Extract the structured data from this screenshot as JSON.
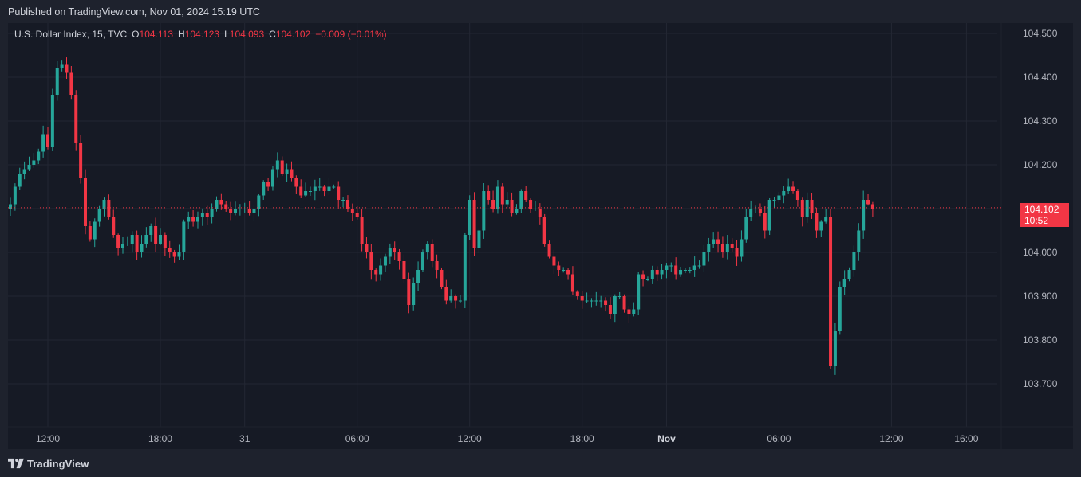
{
  "header": {
    "published": "Published on TradingView.com, Nov 01, 2024 15:19 UTC"
  },
  "legend": {
    "symbol": "U.S. Dollar Index, 15, TVC",
    "open_label": "O",
    "open": "104.113",
    "high_label": "H",
    "high": "104.123",
    "low_label": "L",
    "low": "104.093",
    "close_label": "C",
    "close": "104.102",
    "change": "−0.009 (−0.01%)"
  },
  "last_price": {
    "price": "104.102",
    "countdown": "10:52"
  },
  "footer": {
    "brand": "TradingView",
    "logo_icon": "tradingview-logo-icon"
  },
  "colors": {
    "up": "#26a69a",
    "down": "#f23645",
    "background": "#161a25",
    "grid": "#232733",
    "frame": "#1e222d"
  },
  "chart_data": {
    "type": "candlestick",
    "symbol": "U.S. Dollar Index",
    "interval": "15",
    "exchange": "TVC",
    "y_ticks": [
      "104.500",
      "104.400",
      "104.300",
      "104.200",
      "104.100",
      "104.000",
      "103.900",
      "103.800",
      "103.700"
    ],
    "ylim": [
      103.6,
      104.52
    ],
    "x_ticks": [
      {
        "label": "12:00",
        "bar": 8,
        "bold": false
      },
      {
        "label": "18:00",
        "bar": 32,
        "bold": false
      },
      {
        "label": "31",
        "bar": 50,
        "bold": false
      },
      {
        "label": "06:00",
        "bar": 74,
        "bold": false
      },
      {
        "label": "12:00",
        "bar": 98,
        "bold": false
      },
      {
        "label": "18:00",
        "bar": 122,
        "bold": false
      },
      {
        "label": "Nov",
        "bar": 140,
        "bold": true
      },
      {
        "label": "06:00",
        "bar": 164,
        "bold": false
      },
      {
        "label": "12:00",
        "bar": 188,
        "bold": false
      },
      {
        "label": "16:00",
        "bar": 204,
        "bold": false
      }
    ],
    "anchor_points": [
      [
        0,
        104.11
      ],
      [
        1,
        104.15
      ],
      [
        2,
        104.18
      ],
      [
        3,
        104.19
      ],
      [
        4,
        104.2
      ],
      [
        5,
        104.21
      ],
      [
        6,
        104.23
      ],
      [
        7,
        104.27
      ],
      [
        8,
        104.24
      ],
      [
        9,
        104.36
      ],
      [
        10,
        104.42
      ],
      [
        11,
        104.43
      ],
      [
        12,
        104.41
      ],
      [
        13,
        104.36
      ],
      [
        14,
        104.25
      ],
      [
        15,
        104.17
      ],
      [
        16,
        104.06
      ],
      [
        17,
        104.03
      ],
      [
        18,
        104.07
      ],
      [
        19,
        104.1
      ],
      [
        20,
        104.12
      ],
      [
        21,
        104.08
      ],
      [
        22,
        104.04
      ],
      [
        23,
        104.01
      ],
      [
        24,
        104.02
      ],
      [
        25,
        104.02
      ],
      [
        26,
        104.04
      ],
      [
        27,
        104.0
      ],
      [
        28,
        104.02
      ],
      [
        29,
        104.04
      ],
      [
        30,
        104.06
      ],
      [
        31,
        104.02
      ],
      [
        32,
        104.04
      ],
      [
        33,
        104.01
      ],
      [
        34,
        104.0
      ],
      [
        35,
        103.99
      ],
      [
        36,
        104.0
      ],
      [
        37,
        104.07
      ],
      [
        38,
        104.08
      ],
      [
        39,
        104.07
      ],
      [
        40,
        104.08
      ],
      [
        41,
        104.09
      ],
      [
        42,
        104.08
      ],
      [
        43,
        104.1
      ],
      [
        44,
        104.12
      ],
      [
        45,
        104.11
      ],
      [
        46,
        104.1
      ],
      [
        47,
        104.09
      ],
      [
        48,
        104.1
      ],
      [
        49,
        104.1
      ],
      [
        50,
        104.1
      ],
      [
        51,
        104.09
      ],
      [
        52,
        104.1
      ],
      [
        53,
        104.13
      ],
      [
        54,
        104.16
      ],
      [
        55,
        104.15
      ],
      [
        56,
        104.19
      ],
      [
        57,
        104.21
      ],
      [
        58,
        104.18
      ],
      [
        59,
        104.19
      ],
      [
        60,
        104.17
      ],
      [
        61,
        104.15
      ],
      [
        62,
        104.13
      ],
      [
        63,
        104.14
      ],
      [
        64,
        104.14
      ],
      [
        65,
        104.15
      ],
      [
        66,
        104.15
      ],
      [
        67,
        104.14
      ],
      [
        68,
        104.15
      ],
      [
        69,
        104.15
      ],
      [
        70,
        104.12
      ],
      [
        71,
        104.12
      ],
      [
        72,
        104.1
      ],
      [
        73,
        104.09
      ],
      [
        74,
        104.08
      ],
      [
        75,
        104.02
      ],
      [
        76,
        104.0
      ],
      [
        77,
        103.96
      ],
      [
        78,
        103.95
      ],
      [
        79,
        103.97
      ],
      [
        80,
        103.99
      ],
      [
        81,
        104.01
      ],
      [
        82,
        104.0
      ],
      [
        83,
        103.98
      ],
      [
        84,
        103.94
      ],
      [
        85,
        103.88
      ],
      [
        86,
        103.93
      ],
      [
        87,
        103.96
      ],
      [
        88,
        104.0
      ],
      [
        89,
        104.02
      ],
      [
        90,
        103.98
      ],
      [
        91,
        103.96
      ],
      [
        92,
        103.92
      ],
      [
        93,
        103.89
      ],
      [
        94,
        103.9
      ],
      [
        95,
        103.89
      ],
      [
        96,
        103.89
      ],
      [
        97,
        104.04
      ],
      [
        98,
        104.12
      ],
      [
        99,
        104.01
      ],
      [
        100,
        104.05
      ],
      [
        101,
        104.14
      ],
      [
        102,
        104.12
      ],
      [
        103,
        104.1
      ],
      [
        104,
        104.15
      ],
      [
        105,
        104.11
      ],
      [
        106,
        104.12
      ],
      [
        107,
        104.09
      ],
      [
        108,
        104.1
      ],
      [
        109,
        104.14
      ],
      [
        110,
        104.12
      ],
      [
        111,
        104.1
      ],
      [
        112,
        104.1
      ],
      [
        113,
        104.08
      ],
      [
        114,
        104.02
      ],
      [
        115,
        103.99
      ],
      [
        116,
        103.97
      ],
      [
        117,
        103.96
      ],
      [
        118,
        103.96
      ],
      [
        119,
        103.95
      ],
      [
        120,
        103.91
      ],
      [
        121,
        103.9
      ],
      [
        122,
        103.89
      ],
      [
        123,
        103.89
      ],
      [
        124,
        103.89
      ],
      [
        125,
        103.89
      ],
      [
        126,
        103.89
      ],
      [
        127,
        103.88
      ],
      [
        128,
        103.86
      ],
      [
        129,
        103.9
      ],
      [
        130,
        103.9
      ],
      [
        131,
        103.87
      ],
      [
        132,
        103.86
      ],
      [
        133,
        103.87
      ],
      [
        134,
        103.95
      ],
      [
        135,
        103.94
      ],
      [
        136,
        103.94
      ],
      [
        137,
        103.96
      ],
      [
        138,
        103.95
      ],
      [
        139,
        103.96
      ],
      [
        140,
        103.97
      ],
      [
        141,
        103.97
      ],
      [
        142,
        103.95
      ],
      [
        143,
        103.96
      ],
      [
        144,
        103.96
      ],
      [
        145,
        103.96
      ],
      [
        146,
        103.97
      ],
      [
        147,
        103.97
      ],
      [
        148,
        104.0
      ],
      [
        149,
        104.02
      ],
      [
        150,
        104.03
      ],
      [
        151,
        104.02
      ],
      [
        152,
        104.0
      ],
      [
        153,
        104.02
      ],
      [
        154,
        104.01
      ],
      [
        155,
        103.99
      ],
      [
        156,
        104.03
      ],
      [
        157,
        104.08
      ],
      [
        158,
        104.1
      ],
      [
        159,
        104.1
      ],
      [
        160,
        104.09
      ],
      [
        161,
        104.05
      ],
      [
        162,
        104.12
      ],
      [
        163,
        104.12
      ],
      [
        164,
        104.13
      ],
      [
        165,
        104.14
      ],
      [
        166,
        104.15
      ],
      [
        167,
        104.14
      ],
      [
        168,
        104.12
      ],
      [
        169,
        104.08
      ],
      [
        170,
        104.12
      ],
      [
        171,
        104.09
      ],
      [
        172,
        104.05
      ],
      [
        173,
        104.07
      ],
      [
        174,
        104.08
      ],
      [
        175,
        103.74
      ],
      [
        176,
        103.82
      ],
      [
        177,
        103.92
      ],
      [
        178,
        103.94
      ],
      [
        179,
        103.96
      ],
      [
        180,
        104.0
      ],
      [
        181,
        104.05
      ],
      [
        182,
        104.12
      ],
      [
        183,
        104.11
      ],
      [
        184,
        104.1
      ]
    ]
  }
}
